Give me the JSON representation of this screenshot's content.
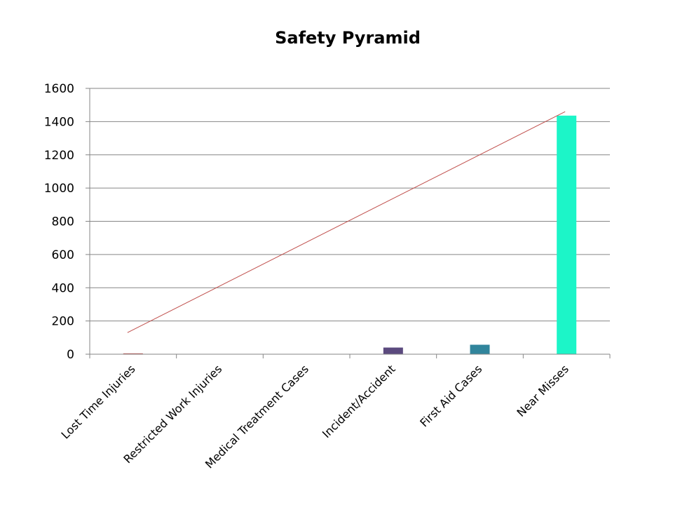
{
  "chart_data": {
    "type": "bar",
    "title": "Safety Pyramid",
    "xlabel": "",
    "ylabel": "",
    "categories": [
      "Lost Time Injuries",
      "Restricted Work Injuries",
      "Medical Treatment Cases",
      "Incident/Accident",
      "First Aid Cases",
      "Near Misses"
    ],
    "series": [
      {
        "values": [
          5,
          0,
          0,
          40,
          57,
          1436
        ],
        "colors": [
          "#c0504d",
          "#9bbb59",
          "#4f81bd",
          "#5b4a7e",
          "#31859c",
          "#1cf5c8"
        ]
      }
    ],
    "trendline": {
      "type": "linear",
      "color": "#c0504d",
      "start": 130,
      "end": 1460
    },
    "ylim": [
      0,
      1600
    ],
    "yticks": [
      0,
      200,
      400,
      600,
      800,
      1000,
      1200,
      1400,
      1600
    ],
    "grid": true,
    "legend": "none"
  }
}
